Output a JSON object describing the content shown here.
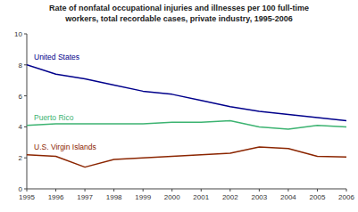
{
  "chart_data": {
    "type": "line",
    "title": "Rate of nonfatal occupational injuries and illnesses per 100 full-time\nworkers, total recordable cases, private industry, 1995-2006",
    "x": [
      1995,
      1996,
      1997,
      1998,
      1999,
      2000,
      2001,
      2002,
      2003,
      2004,
      2005,
      2006
    ],
    "series": [
      {
        "name": "United States",
        "color": "#00008B",
        "values": [
          8.0,
          7.4,
          7.1,
          6.7,
          6.3,
          6.1,
          5.7,
          5.3,
          5.0,
          4.8,
          4.6,
          4.4
        ]
      },
      {
        "name": "Puerto Rico",
        "color": "#3CB371",
        "values": [
          4.1,
          4.2,
          4.2,
          4.2,
          4.2,
          4.3,
          4.3,
          4.4,
          4.0,
          3.85,
          4.1,
          4.0
        ]
      },
      {
        "name": "U.S. Virgin Islands",
        "color": "#8B2500",
        "values": [
          2.2,
          2.1,
          1.4,
          1.9,
          2.0,
          2.1,
          2.2,
          2.3,
          2.7,
          2.6,
          2.1,
          2.05
        ]
      }
    ],
    "xlim": [
      1995,
      2006
    ],
    "xticks": [
      1995,
      1996,
      1997,
      1998,
      1999,
      2000,
      2001,
      2002,
      2003,
      2004,
      2005,
      2006
    ],
    "ylim": [
      0,
      10
    ],
    "yticks": [
      0,
      2,
      4,
      6,
      8,
      10
    ],
    "grid": false
  }
}
